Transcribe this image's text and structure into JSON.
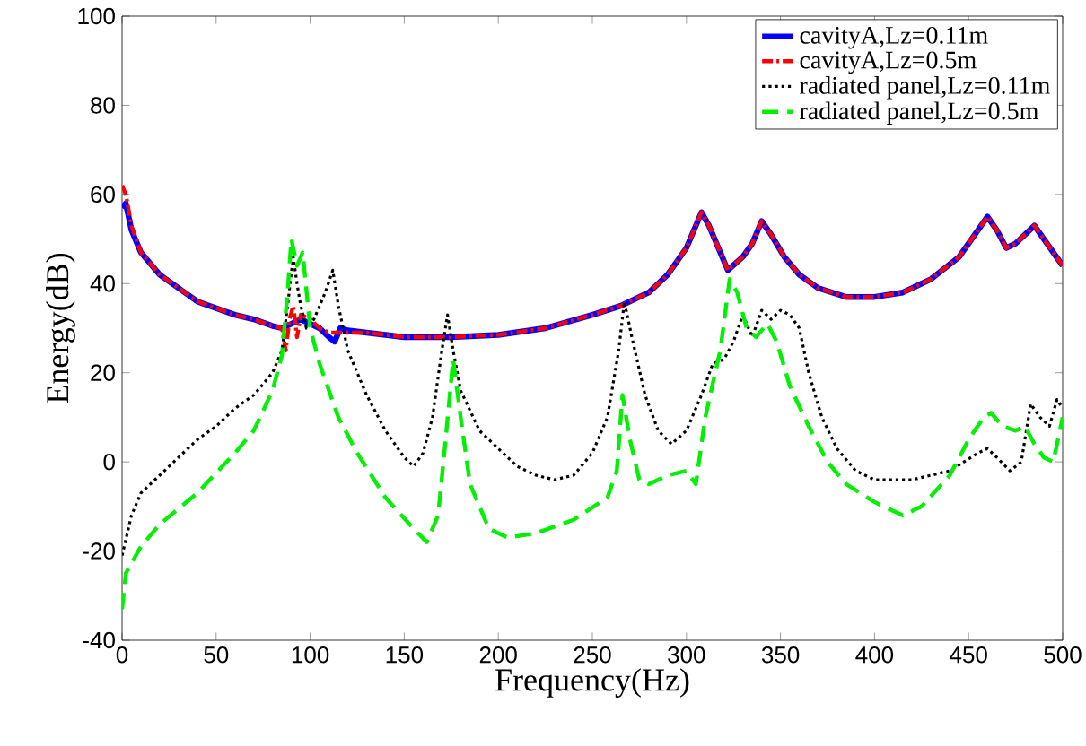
{
  "chart_data": {
    "type": "line",
    "xlabel": "Frequency(Hz)",
    "ylabel": "Energy(dB)",
    "xlim": [
      0,
      500
    ],
    "ylim": [
      -40,
      100
    ],
    "xticks": [
      0,
      50,
      100,
      150,
      200,
      250,
      300,
      350,
      400,
      450,
      500
    ],
    "yticks": [
      -40,
      -20,
      0,
      20,
      40,
      60,
      80,
      100
    ],
    "legend": "top right",
    "grid": false,
    "marker": "none",
    "series": [
      {
        "name": "cavityA,Lz=0.11m",
        "color": "#0000ff",
        "line_style": "solid",
        "x": [
          0,
          2,
          5,
          10,
          20,
          30,
          40,
          50,
          60,
          70,
          80,
          85,
          90,
          95,
          100,
          105,
          110,
          113,
          116,
          120,
          130,
          150,
          175,
          200,
          225,
          250,
          265,
          280,
          290,
          300,
          305,
          308,
          312,
          318,
          322,
          330,
          335,
          340,
          345,
          352,
          360,
          370,
          385,
          400,
          415,
          430,
          445,
          455,
          460,
          465,
          470,
          475,
          480,
          485,
          490,
          500
        ],
        "values": [
          57,
          58,
          52,
          47,
          42,
          39,
          36,
          34.5,
          33,
          32,
          30.5,
          30,
          31,
          32,
          31,
          30,
          28,
          27,
          30,
          29.5,
          29,
          28,
          28,
          28.5,
          30,
          33,
          35,
          38,
          42,
          48,
          53,
          56,
          53,
          47,
          43,
          46,
          49,
          54,
          51,
          46,
          42,
          39,
          37,
          37,
          38,
          41,
          46,
          52,
          55,
          52,
          48,
          49,
          51,
          53,
          50,
          44
        ]
      },
      {
        "name": "cavityA,Lz=0.5m",
        "color": "#ff0000",
        "line_style": "dashdot",
        "x": [
          0,
          2,
          5,
          10,
          20,
          30,
          40,
          50,
          60,
          70,
          80,
          85,
          87,
          89,
          91,
          93,
          95,
          100,
          105,
          110,
          115,
          120,
          130,
          150,
          175,
          200,
          225,
          250,
          265,
          280,
          290,
          300,
          305,
          308,
          312,
          318,
          322,
          330,
          335,
          340,
          345,
          352,
          360,
          370,
          385,
          400,
          415,
          430,
          445,
          455,
          460,
          465,
          470,
          475,
          480,
          485,
          490,
          500
        ],
        "values": [
          62,
          60,
          53,
          47,
          42,
          39,
          36,
          34.5,
          33,
          32,
          30.5,
          30,
          25,
          32,
          35,
          28,
          33,
          32,
          30,
          29,
          29,
          29,
          29,
          28,
          28,
          28.5,
          30,
          33,
          35,
          38,
          42,
          48,
          53,
          56,
          53,
          47,
          43,
          46,
          49,
          54,
          51,
          46,
          42,
          39,
          37,
          37,
          38,
          41,
          46,
          52,
          55,
          52,
          48,
          49,
          51,
          53,
          50,
          44
        ]
      },
      {
        "name": "radiated panel,Lz=0.11m",
        "color": "#000000",
        "line_style": "dotted",
        "x": [
          0,
          5,
          10,
          20,
          30,
          40,
          50,
          60,
          70,
          80,
          85,
          88,
          91,
          93,
          95,
          98,
          102,
          108,
          112,
          115,
          120,
          130,
          140,
          150,
          155,
          160,
          165,
          170,
          173,
          176,
          180,
          190,
          200,
          210,
          220,
          230,
          240,
          250,
          258,
          264,
          267,
          271,
          278,
          285,
          292,
          300,
          308,
          314,
          320,
          325,
          330,
          335,
          340,
          345,
          350,
          355,
          360,
          365,
          372,
          380,
          390,
          400,
          420,
          440,
          455,
          460,
          465,
          472,
          478,
          483,
          488,
          493,
          497,
          500
        ],
        "values": [
          -21,
          -12,
          -7,
          -3,
          1,
          5,
          8,
          12,
          15,
          20,
          25,
          35,
          46,
          40,
          35,
          30,
          32,
          38,
          43,
          35,
          25,
          15,
          7,
          1,
          -1,
          2,
          10,
          25,
          33,
          25,
          16,
          7,
          3,
          -1,
          -3,
          -4,
          -3,
          2,
          10,
          25,
          36,
          28,
          15,
          7,
          4,
          7,
          15,
          22,
          23,
          27,
          33,
          28,
          34,
          32,
          34,
          33,
          30,
          20,
          10,
          3,
          -2,
          -4,
          -4,
          -2,
          2,
          3,
          1,
          -2,
          0,
          13,
          10,
          8,
          14,
          12
        ]
      },
      {
        "name": "radiated panel,Lz=0.5m",
        "color": "#00ee00",
        "line_style": "dashed",
        "x": [
          0,
          2,
          10,
          20,
          40,
          60,
          70,
          80,
          85,
          88,
          90,
          93,
          96,
          100,
          105,
          115,
          125,
          140,
          155,
          162,
          168,
          172,
          176,
          180,
          185,
          195,
          205,
          220,
          240,
          258,
          263,
          266,
          270,
          275,
          280,
          290,
          300,
          305,
          310,
          318,
          323,
          327,
          332,
          337,
          343,
          348,
          355,
          365,
          375,
          385,
          400,
          415,
          425,
          440,
          450,
          458,
          462,
          468,
          475,
          480,
          485,
          490,
          495,
          500
        ],
        "values": [
          -33,
          -25,
          -19,
          -14,
          -7,
          2,
          7,
          16,
          24,
          38,
          50,
          44,
          47,
          30,
          22,
          10,
          2,
          -8,
          -15,
          -18,
          -12,
          5,
          23,
          10,
          -5,
          -15,
          -17,
          -16,
          -13,
          -8,
          -2,
          15,
          5,
          -4,
          -5,
          -3,
          -2,
          -5,
          10,
          25,
          41,
          38,
          30,
          28,
          31,
          27,
          17,
          8,
          0,
          -5,
          -9,
          -12,
          -10,
          -3,
          5,
          10,
          11,
          8,
          7,
          8,
          4,
          1,
          0,
          10
        ]
      }
    ]
  }
}
